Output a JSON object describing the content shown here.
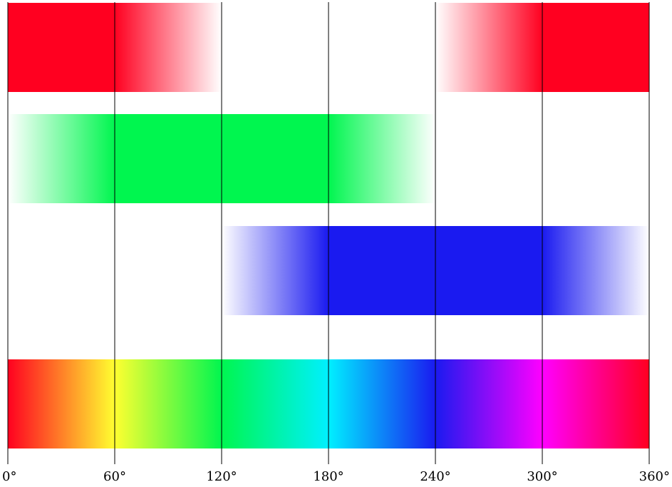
{
  "diagram": {
    "axis": {
      "min": 0,
      "max": 360,
      "tick_labels": [
        "0°",
        "60°",
        "120°",
        "180°",
        "240°",
        "300°",
        "360°"
      ]
    },
    "channels": [
      {
        "name": "red",
        "color": "#ff0020",
        "segments": [
          {
            "from": 0,
            "to": 60,
            "start_alpha": 1,
            "end_alpha": 1
          },
          {
            "from": 60,
            "to": 120,
            "start_alpha": 1,
            "end_alpha": 0
          },
          {
            "from": 240,
            "to": 300,
            "start_alpha": 0,
            "end_alpha": 1
          },
          {
            "from": 300,
            "to": 360,
            "start_alpha": 1,
            "end_alpha": 1
          }
        ]
      },
      {
        "name": "green",
        "color": "#00f64f",
        "segments": [
          {
            "from": 0,
            "to": 60,
            "start_alpha": 0,
            "end_alpha": 1
          },
          {
            "from": 60,
            "to": 180,
            "start_alpha": 1,
            "end_alpha": 1
          },
          {
            "from": 180,
            "to": 240,
            "start_alpha": 1,
            "end_alpha": 0
          }
        ]
      },
      {
        "name": "blue",
        "color": "#1a1af0",
        "segments": [
          {
            "from": 120,
            "to": 180,
            "start_alpha": 0,
            "end_alpha": 1
          },
          {
            "from": 180,
            "to": 300,
            "start_alpha": 1,
            "end_alpha": 1
          },
          {
            "from": 300,
            "to": 360,
            "start_alpha": 1,
            "end_alpha": 0
          }
        ]
      }
    ],
    "spectrum": {
      "name": "hue",
      "stops": [
        {
          "at": 0,
          "color": "#ff0020"
        },
        {
          "at": 60,
          "color": "#ffff30"
        },
        {
          "at": 120,
          "color": "#00f64f"
        },
        {
          "at": 180,
          "color": "#00f0ff"
        },
        {
          "at": 240,
          "color": "#1a1af0"
        },
        {
          "at": 300,
          "color": "#ff00ff"
        },
        {
          "at": 360,
          "color": "#ff0020"
        }
      ]
    }
  }
}
